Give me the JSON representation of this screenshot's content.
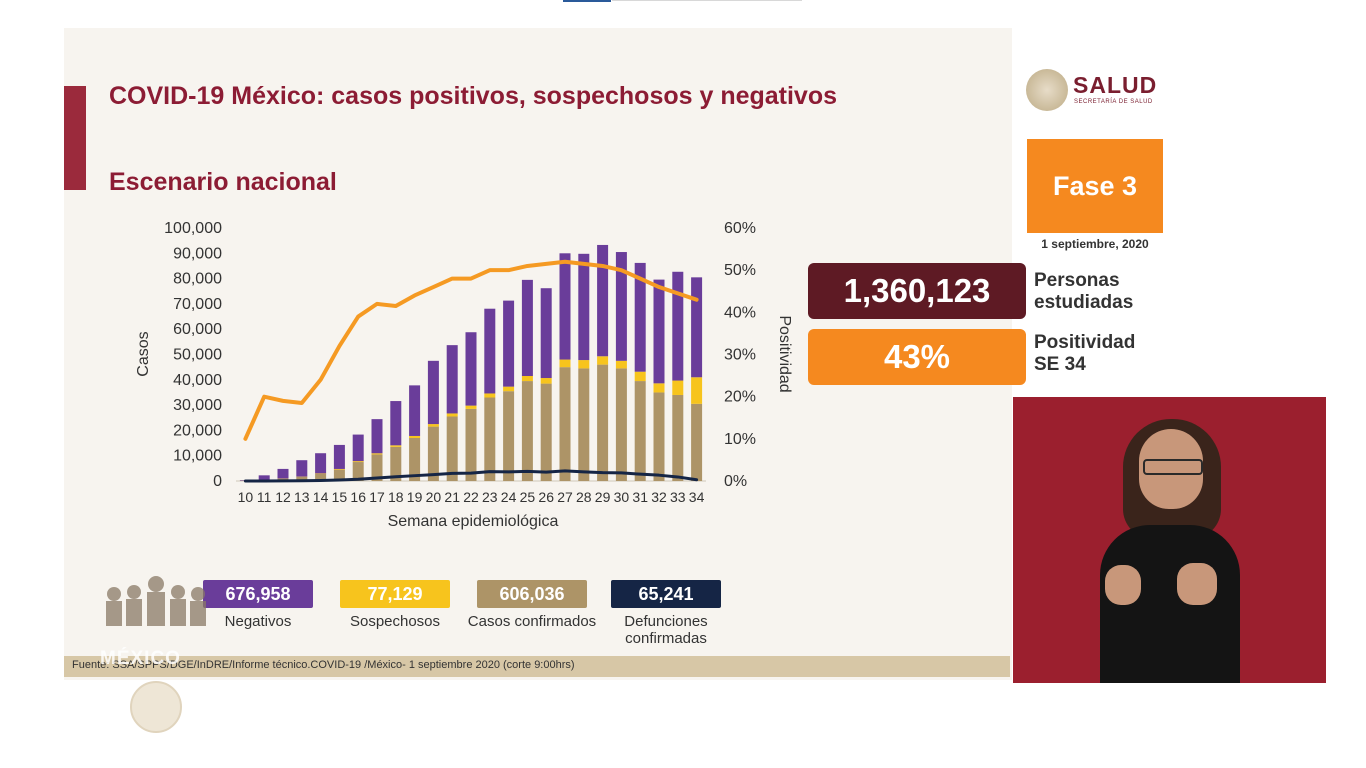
{
  "title": "COVID-19 México: casos positivos, sospechosos y negativos",
  "subtitle": "Escenario nacional",
  "logo": {
    "name": "SALUD",
    "tagline": "SECRETARÍA DE SALUD"
  },
  "fase": "Fase 3",
  "date": "1 septiembre, 2020",
  "stats": [
    {
      "value": "1,360,123",
      "label": "Personas estudiadas",
      "color": "#5e1a24"
    },
    {
      "value": "43%",
      "label": "Positividad SE 34",
      "color": "#f5891f"
    }
  ],
  "legend": [
    {
      "value": "676,958",
      "label": "Negativos",
      "color": "#6a3d9a"
    },
    {
      "value": "77,129",
      "label": "Sospechosos",
      "color": "#f7c41d"
    },
    {
      "value": "606,036",
      "label": "Casos confirmados",
      "color": "#ad9467"
    },
    {
      "value": "65,241",
      "label": "Defunciones confirmadas",
      "color": "#152545"
    }
  ],
  "footer": "Fuente: SSA/SPPS/DGE/InDRE/Informe técnico.COVID-19 /México- 1 septiembre 2020 (corte 9:00hrs)",
  "branding": {
    "mexico_word": "MÉXICO"
  },
  "chart_data": {
    "type": "bar",
    "stacked": true,
    "xlabel": "Semana epidemiológica",
    "ylabel": "Casos",
    "y2label": "Positividad",
    "ylim": [
      0,
      100000
    ],
    "y2lim": [
      0,
      60
    ],
    "yticks": [
      "0",
      "10,000",
      "20,000",
      "30,000",
      "40,000",
      "50,000",
      "60,000",
      "70,000",
      "80,000",
      "90,000",
      "100,000"
    ],
    "y2ticks": [
      "0%",
      "10%",
      "20%",
      "30%",
      "40%",
      "50%",
      "60%"
    ],
    "categories": [
      "10",
      "11",
      "12",
      "13",
      "14",
      "15",
      "16",
      "17",
      "18",
      "19",
      "20",
      "21",
      "22",
      "23",
      "24",
      "25",
      "26",
      "27",
      "28",
      "29",
      "30",
      "31",
      "32",
      "33",
      "34"
    ],
    "series": [
      {
        "name": "Casos confirmados",
        "type": "bar",
        "color": "#ad9467",
        "values": [
          100,
          400,
          900,
          1600,
          2800,
          4500,
          7500,
          10500,
          13500,
          17000,
          21500,
          25500,
          28500,
          33000,
          35500,
          39500,
          38500,
          45000,
          44500,
          46000,
          44500,
          39500,
          35000,
          34000,
          30500
        ]
      },
      {
        "name": "Sospechosos",
        "type": "bar",
        "color": "#f7c41d",
        "values": [
          20,
          40,
          80,
          120,
          180,
          260,
          350,
          450,
          600,
          800,
          1000,
          1200,
          1300,
          1600,
          1800,
          2000,
          2200,
          3000,
          3300,
          3300,
          3000,
          3700,
          3600,
          5700,
          10500
        ]
      },
      {
        "name": "Negativos",
        "type": "bar",
        "color": "#6a3d9a",
        "values": [
          200,
          1800,
          3800,
          6500,
          8000,
          9500,
          10500,
          13500,
          17500,
          20000,
          25000,
          27000,
          29000,
          33500,
          34000,
          38000,
          35500,
          42000,
          42000,
          44000,
          43000,
          43000,
          41000,
          43000,
          39500
        ]
      },
      {
        "name": "Defunciones confirmadas",
        "type": "line",
        "color": "#152545",
        "axis": "y",
        "values": [
          0,
          10,
          30,
          80,
          200,
          400,
          700,
          1200,
          1700,
          2100,
          2500,
          3000,
          3100,
          3700,
          3600,
          3800,
          3500,
          4000,
          3600,
          3300,
          3200,
          2700,
          2300,
          1600,
          500
        ]
      },
      {
        "name": "Positividad",
        "type": "line",
        "color": "#f59a23",
        "axis": "y2",
        "values": [
          10,
          20,
          19,
          18.5,
          24,
          32,
          39,
          42,
          41.5,
          44,
          46,
          48,
          48,
          50,
          50,
          51,
          51.5,
          52,
          51.5,
          51,
          50,
          48,
          46,
          44.5,
          43
        ]
      }
    ]
  }
}
